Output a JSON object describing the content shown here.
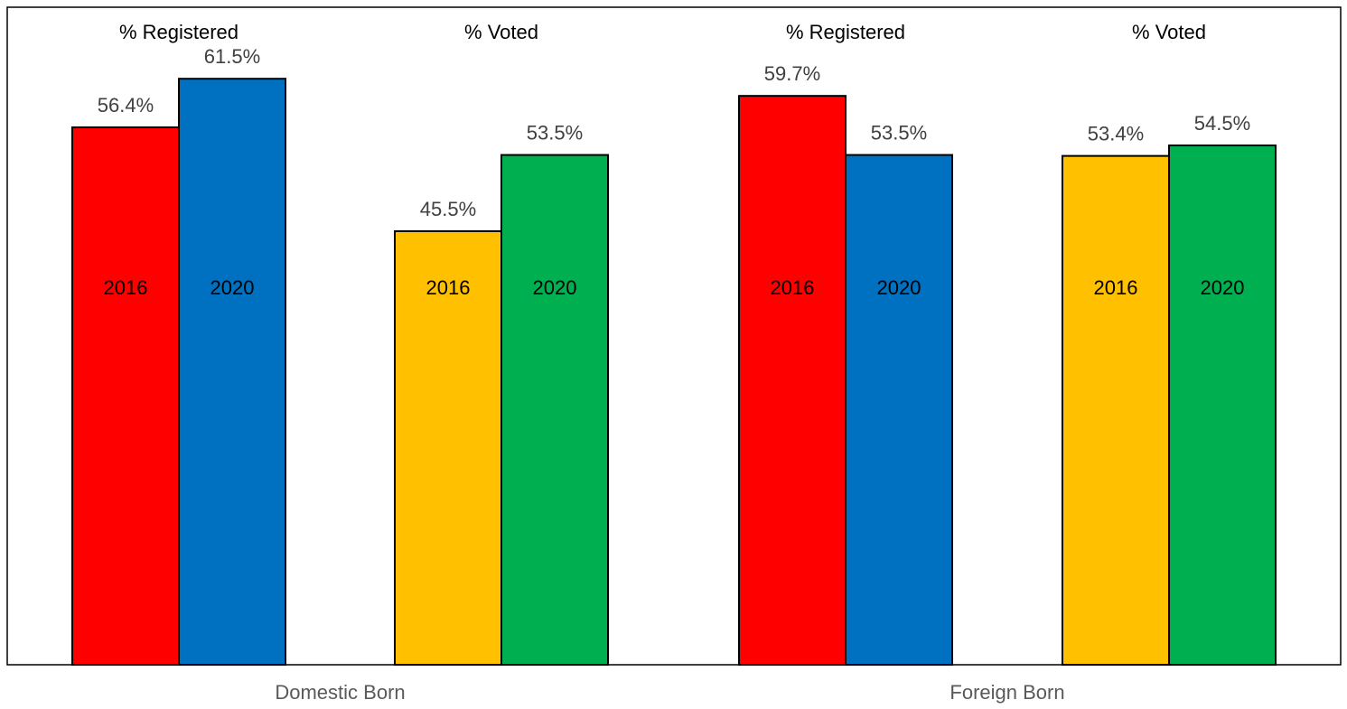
{
  "chart_data": {
    "type": "bar",
    "groups": [
      {
        "label": "Domestic Born",
        "subgroups": [
          {
            "title": "% Registered",
            "bars": [
              {
                "category": "2016",
                "value": 56.4,
                "value_label": "56.4%",
                "color": "#FF0000"
              },
              {
                "category": "2020",
                "value": 61.5,
                "value_label": "61.5%",
                "color": "#0070C0"
              }
            ]
          },
          {
            "title": "% Voted",
            "bars": [
              {
                "category": "2016",
                "value": 45.5,
                "value_label": "45.5%",
                "color": "#FFC000"
              },
              {
                "category": "2020",
                "value": 53.5,
                "value_label": "53.5%",
                "color": "#00B050"
              }
            ]
          }
        ]
      },
      {
        "label": "Foreign Born",
        "subgroups": [
          {
            "title": "% Registered",
            "bars": [
              {
                "category": "2016",
                "value": 59.7,
                "value_label": "59.7%",
                "color": "#FF0000"
              },
              {
                "category": "2020",
                "value": 53.5,
                "value_label": "53.5%",
                "color": "#0070C0"
              }
            ]
          },
          {
            "title": "% Voted",
            "bars": [
              {
                "category": "2016",
                "value": 53.4,
                "value_label": "53.4%",
                "color": "#FFC000"
              },
              {
                "category": "2020",
                "value": 54.5,
                "value_label": "54.5%",
                "color": "#00B050"
              }
            ]
          }
        ]
      }
    ],
    "ylim": [
      0,
      70
    ],
    "grid": false,
    "legend": "none"
  }
}
